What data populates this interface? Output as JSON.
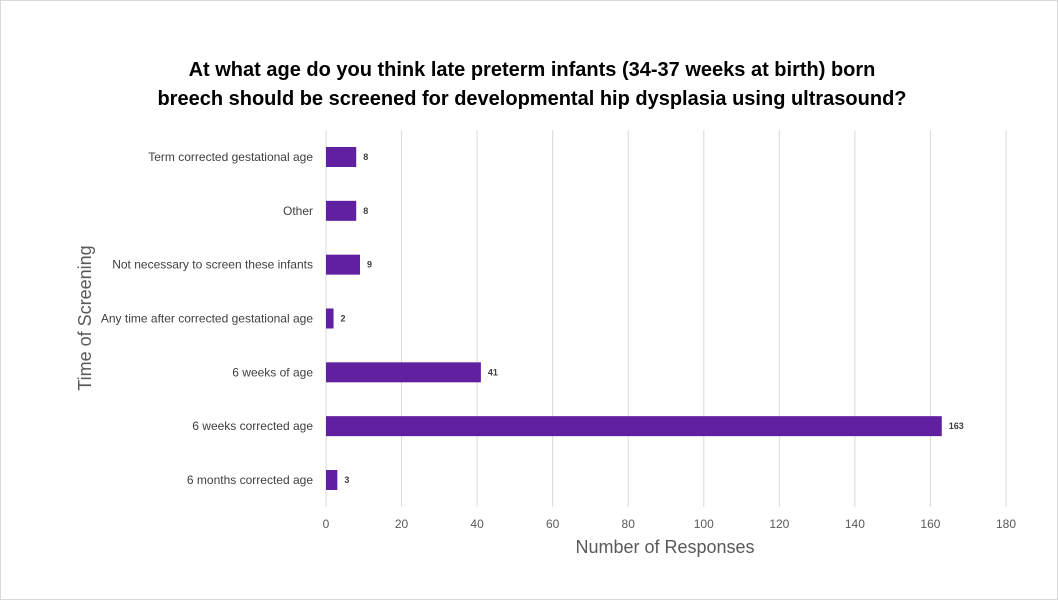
{
  "chart_data": {
    "type": "bar",
    "orientation": "horizontal",
    "title_lines": [
      "At what age do you think late preterm infants (34-37 weeks at birth) born",
      "breech should be screened for developmental hip dysplasia using ultrasound?"
    ],
    "xlabel": "Number of Responses",
    "ylabel": "Time of Screening",
    "categories": [
      "Term corrected gestational age",
      "Other",
      "Not necessary to screen these infants",
      "Any time after corrected gestational age",
      "6 weeks of age",
      "6 weeks corrected age",
      "6 months corrected age"
    ],
    "values": [
      8,
      8,
      9,
      2,
      41,
      163,
      3
    ],
    "xlim": [
      0,
      180
    ],
    "xticks": [
      0,
      20,
      40,
      60,
      80,
      100,
      120,
      140,
      160,
      180
    ],
    "grid": true,
    "legend": "none",
    "bar_color": "#6020a0",
    "data_labels": true
  }
}
